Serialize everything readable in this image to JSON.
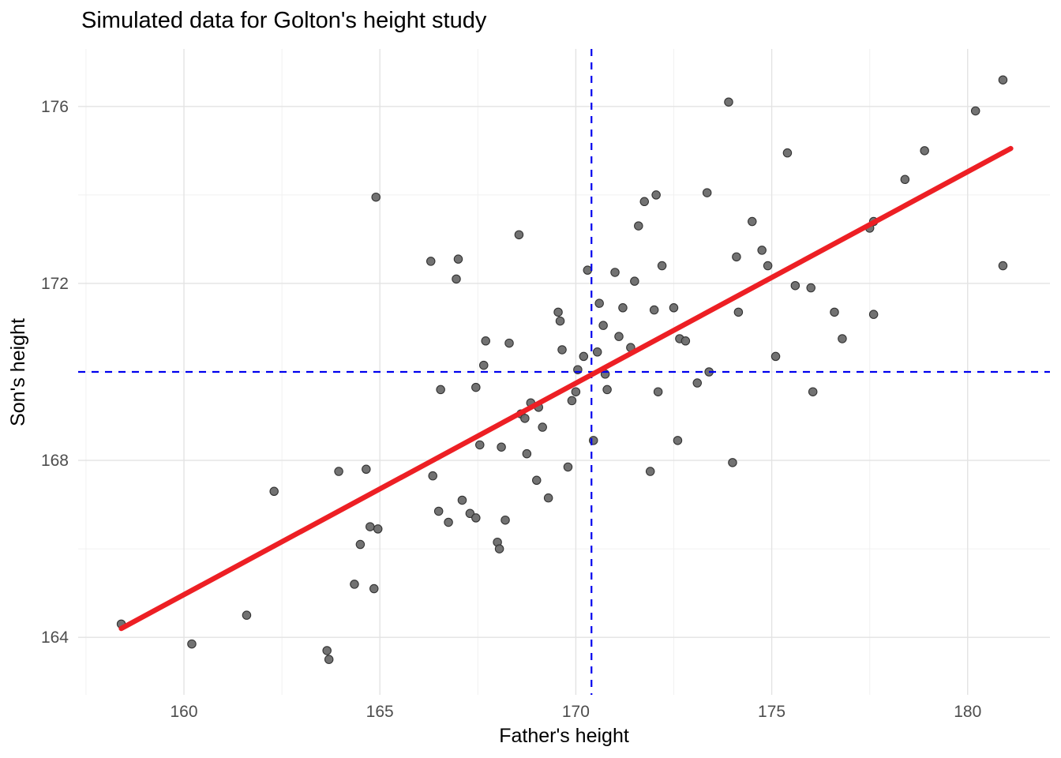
{
  "chart_data": {
    "type": "scatter",
    "title": "Simulated data for Golton's height study",
    "xlabel": "Father's height",
    "ylabel": "Son's height",
    "x_domain": [
      157.3,
      182.1
    ],
    "y_domain": [
      162.7,
      177.3
    ],
    "x_ticks": [
      160,
      165,
      170,
      175,
      180
    ],
    "y_ticks": [
      164,
      168,
      172,
      176
    ],
    "x_minor_ticks": [
      157.5,
      162.5,
      167.5,
      172.5,
      177.5
    ],
    "y_minor_ticks": [
      166,
      170,
      174
    ],
    "grid": true,
    "legend": "none",
    "points": [
      [
        158.4,
        164.3
      ],
      [
        160.2,
        163.85
      ],
      [
        161.6,
        164.5
      ],
      [
        162.3,
        167.3
      ],
      [
        163.65,
        163.7
      ],
      [
        163.7,
        163.5
      ],
      [
        163.95,
        167.75
      ],
      [
        164.35,
        165.2
      ],
      [
        164.5,
        166.1
      ],
      [
        164.65,
        167.8
      ],
      [
        164.75,
        166.5
      ],
      [
        164.95,
        166.45
      ],
      [
        164.85,
        165.1
      ],
      [
        164.9,
        173.95
      ],
      [
        166.3,
        172.5
      ],
      [
        166.35,
        167.65
      ],
      [
        166.5,
        166.85
      ],
      [
        166.55,
        169.6
      ],
      [
        166.75,
        166.6
      ],
      [
        166.95,
        172.1
      ],
      [
        167.0,
        172.55
      ],
      [
        167.1,
        167.1
      ],
      [
        167.3,
        166.8
      ],
      [
        167.45,
        166.7
      ],
      [
        167.45,
        169.65
      ],
      [
        167.55,
        168.35
      ],
      [
        167.65,
        170.15
      ],
      [
        167.7,
        170.7
      ],
      [
        168.0,
        166.15
      ],
      [
        168.05,
        166.0
      ],
      [
        168.1,
        168.3
      ],
      [
        168.2,
        166.65
      ],
      [
        168.3,
        170.65
      ],
      [
        168.55,
        173.1
      ],
      [
        168.6,
        169.05
      ],
      [
        168.7,
        168.95
      ],
      [
        168.75,
        168.15
      ],
      [
        168.85,
        169.3
      ],
      [
        169.0,
        167.55
      ],
      [
        169.05,
        169.2
      ],
      [
        169.15,
        168.75
      ],
      [
        169.3,
        167.15
      ],
      [
        169.55,
        171.35
      ],
      [
        169.6,
        171.15
      ],
      [
        169.65,
        170.5
      ],
      [
        169.8,
        167.85
      ],
      [
        169.9,
        169.35
      ],
      [
        170.0,
        169.55
      ],
      [
        170.05,
        170.05
      ],
      [
        170.2,
        170.35
      ],
      [
        170.3,
        172.3
      ],
      [
        170.45,
        168.45
      ],
      [
        170.55,
        170.45
      ],
      [
        170.6,
        171.55
      ],
      [
        170.7,
        171.05
      ],
      [
        170.75,
        169.95
      ],
      [
        170.8,
        169.6
      ],
      [
        171.0,
        172.25
      ],
      [
        171.1,
        170.8
      ],
      [
        171.2,
        171.45
      ],
      [
        171.4,
        170.55
      ],
      [
        171.5,
        172.05
      ],
      [
        171.6,
        173.3
      ],
      [
        171.75,
        173.85
      ],
      [
        171.9,
        167.75
      ],
      [
        172.0,
        171.4
      ],
      [
        172.05,
        174.0
      ],
      [
        172.1,
        169.55
      ],
      [
        172.2,
        172.4
      ],
      [
        172.5,
        171.45
      ],
      [
        172.6,
        168.45
      ],
      [
        172.65,
        170.75
      ],
      [
        172.8,
        170.7
      ],
      [
        173.1,
        169.75
      ],
      [
        173.35,
        174.05
      ],
      [
        173.4,
        170.0
      ],
      [
        173.9,
        176.1
      ],
      [
        174.0,
        167.95
      ],
      [
        174.1,
        172.6
      ],
      [
        174.15,
        171.35
      ],
      [
        174.5,
        173.4
      ],
      [
        174.75,
        172.75
      ],
      [
        174.9,
        172.4
      ],
      [
        175.1,
        170.35
      ],
      [
        175.4,
        174.95
      ],
      [
        175.6,
        171.95
      ],
      [
        176.0,
        171.9
      ],
      [
        176.05,
        169.55
      ],
      [
        176.6,
        171.35
      ],
      [
        176.8,
        170.75
      ],
      [
        177.5,
        173.25
      ],
      [
        177.6,
        173.4
      ],
      [
        177.6,
        171.3
      ],
      [
        178.4,
        174.35
      ],
      [
        178.9,
        175.0
      ],
      [
        180.2,
        175.9
      ],
      [
        180.9,
        176.6
      ],
      [
        180.9,
        172.4
      ]
    ],
    "regression_line": {
      "x1": 158.4,
      "y1": 164.2,
      "x2": 181.1,
      "y2": 175.05
    },
    "vline_x": 170.4,
    "hline_y": 170.0,
    "style": {
      "point_fill": "#6a6a6a",
      "point_stroke": "#333333",
      "point_radius": 5.2,
      "regression_color": "#ed1f24",
      "regression_width": 6.5,
      "dashed_color": "#0000ee",
      "dashed_width": 2.2,
      "grid_major": "#e3e3e3",
      "grid_minor": "#f1f1f1",
      "tick_label_color": "#4d4d4d",
      "background": "#ffffff"
    }
  }
}
